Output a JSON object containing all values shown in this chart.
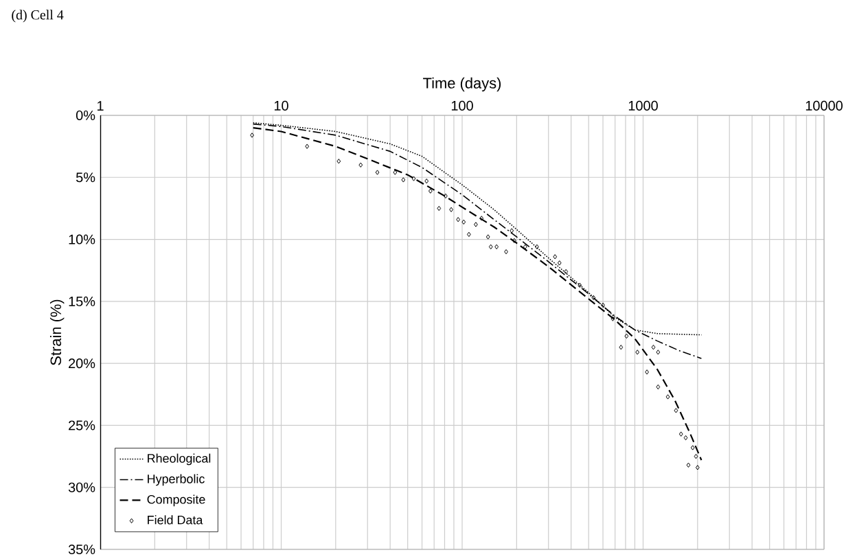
{
  "chart_data": {
    "type": "line",
    "title": "(d) Cell 4",
    "xlabel": "Time (days)",
    "ylabel": "Strain (%)",
    "log": "x",
    "grid": true,
    "legend": "bottom left",
    "xlim": [
      1,
      10000
    ],
    "xticks": [
      1,
      10,
      100,
      1000,
      10000
    ],
    "ylim": [
      35,
      0
    ],
    "yticks": [
      {
        "value": 0,
        "label": "0%"
      },
      {
        "value": 5,
        "label": "5%"
      },
      {
        "value": 10,
        "label": "10%"
      },
      {
        "value": 15,
        "label": "15%"
      },
      {
        "value": 20,
        "label": "20%"
      },
      {
        "value": 25,
        "label": "25%"
      },
      {
        "value": 30,
        "label": "30%"
      },
      {
        "value": 35,
        "label": "35%"
      }
    ],
    "series": [
      {
        "name": "Rheological",
        "line_style": "dotted",
        "color": "#000000",
        "x": [
          7,
          10,
          20,
          40,
          60,
          80,
          100,
          150,
          200,
          300,
          500,
          700,
          900,
          1200,
          2100
        ],
        "values": [
          0.6,
          0.8,
          1.3,
          2.3,
          3.3,
          4.6,
          5.6,
          7.6,
          9.2,
          11.5,
          14.3,
          16.3,
          17.3,
          17.6,
          17.7
        ]
      },
      {
        "name": "Hyperbolic",
        "line_style": "dashdot",
        "color": "#000000",
        "x": [
          7,
          10,
          20,
          40,
          60,
          100,
          150,
          200,
          300,
          500,
          700,
          900,
          1200,
          1600,
          2100
        ],
        "values": [
          0.7,
          0.9,
          1.6,
          2.9,
          4.2,
          6.4,
          8.4,
          9.8,
          11.8,
          14.4,
          16.2,
          17.3,
          18.2,
          19.0,
          19.6
        ]
      },
      {
        "name": "Composite",
        "line_style": "dashed",
        "color": "#000000",
        "x": [
          7,
          10,
          20,
          30,
          50,
          80,
          100,
          150,
          200,
          300,
          500,
          700,
          900,
          1200,
          1500,
          1800,
          2100
        ],
        "values": [
          1.0,
          1.3,
          2.5,
          3.5,
          4.8,
          6.5,
          7.4,
          9.0,
          10.3,
          12.2,
          14.8,
          16.5,
          18.0,
          20.5,
          23.0,
          25.5,
          27.8
        ]
      },
      {
        "name": "Field Data",
        "type": "scatter",
        "marker": "diamond",
        "color": "#000000",
        "x": [
          6.9,
          13.9,
          20.8,
          27.5,
          34,
          42.6,
          47.3,
          54,
          63.6,
          66.8,
          74.5,
          81,
          87,
          95,
          102,
          109,
          119,
          128,
          139,
          144,
          155,
          175,
          188,
          194,
          223,
          259,
          326,
          345,
          375,
          447,
          532,
          600,
          680,
          755,
          810,
          930,
          1050,
          1140,
          1210,
          1210,
          1370,
          1520,
          1620,
          1720,
          1780,
          1880,
          1960,
          2000
        ],
        "values": [
          1.6,
          2.5,
          3.7,
          4.0,
          4.6,
          4.6,
          5.2,
          5.1,
          5.3,
          6.1,
          7.5,
          6.5,
          7.6,
          8.4,
          8.6,
          9.6,
          8.8,
          8.3,
          9.8,
          10.6,
          10.6,
          11.0,
          9.3,
          10.1,
          10.6,
          10.6,
          11.4,
          11.9,
          12.6,
          13.7,
          14.7,
          15.3,
          16.4,
          18.7,
          17.8,
          19.1,
          20.7,
          18.7,
          19.1,
          21.9,
          22.7,
          23.8,
          25.7,
          26.0,
          28.2,
          26.8,
          27.5,
          28.4
        ]
      }
    ]
  }
}
